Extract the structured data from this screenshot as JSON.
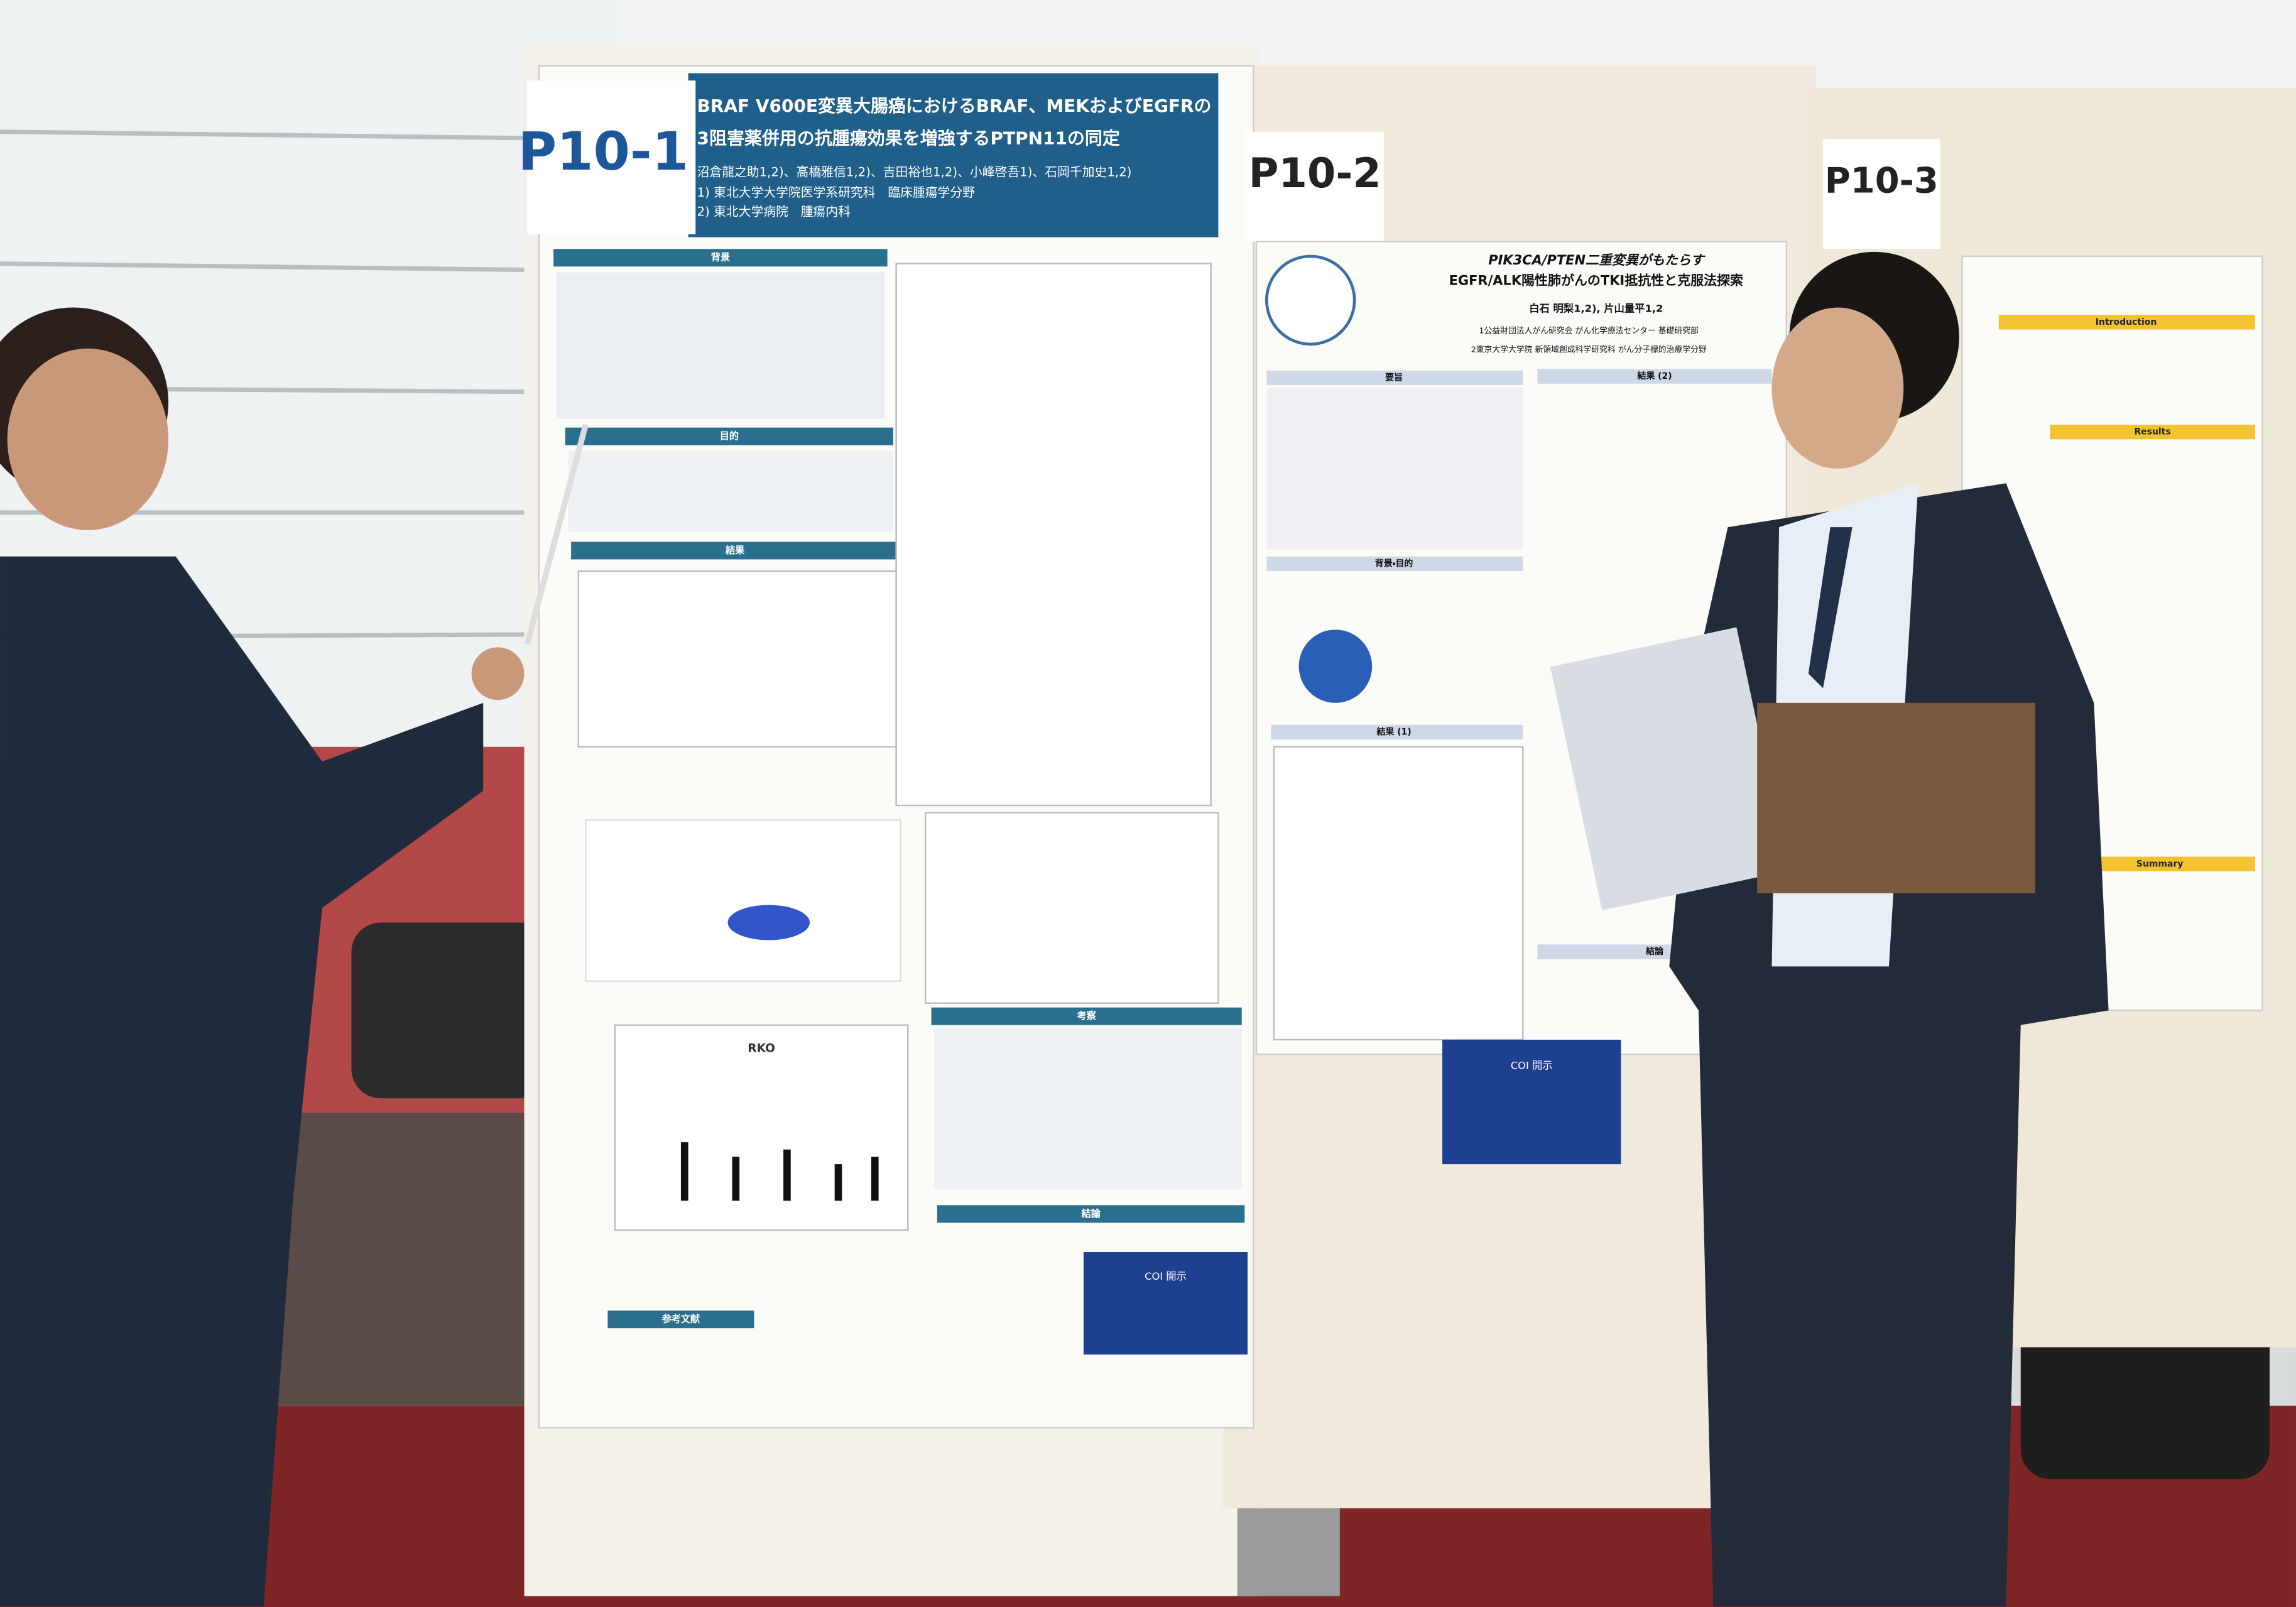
{
  "posters": [
    {
      "label": "P10-1",
      "title": [
        "BRAF V600E変異大腸癌におけるBRAF、MEKおよびEGFRの",
        "3阻害薬併用の抗腫瘍効果を増強するPTPN11の同定"
      ],
      "authors": "沼倉龍之助1,2)、高橋雅信1,2)、吉田裕也1,2)、小峰啓吾1)、石岡千加史1,2)",
      "affiliations": [
        "1) 東北大学大学院医学系研究科　臨床腫瘍学分野",
        "2) 東北大学病院　腫瘍内科"
      ],
      "sections": [
        "背景",
        "目的",
        "結果",
        "考察",
        "結論",
        "参考文献"
      ],
      "chart_title": "RKO",
      "coi": "COI 開示"
    },
    {
      "label": "P10-2",
      "title": [
        "PIK3CA/PTEN二重変異がもたらす",
        "EGFR/ALK陽性肺がんのTKI抵抗性と克服法探索"
      ],
      "authors": "白石 明梨1,2), 片山量平1,2",
      "affiliations": [
        "1公益財団法人がん研究会 がん化学療法センター 基礎研究部",
        "2東京大学大学院 新領域創成科学研究科 がん分子標的治療学分野"
      ],
      "sections": [
        "要旨",
        "背景・目的",
        "結果 (1)",
        "結果 (2)",
        "結論"
      ],
      "coi": "COI 開示"
    },
    {
      "label": "P10-3",
      "sections": [
        "Introduction",
        "Results",
        "Summary"
      ]
    }
  ]
}
